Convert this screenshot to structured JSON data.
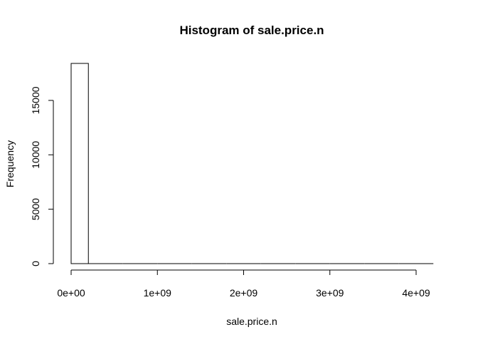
{
  "chart_data": {
    "type": "bar",
    "title": "Histogram of sale.price.n",
    "xlabel": "sale.price.n",
    "ylabel": "Frequency",
    "bin_width": 200000000,
    "bins": [
      {
        "start": 0,
        "end": 200000000,
        "count": 18400
      },
      {
        "start": 200000000,
        "end": 400000000,
        "count": 0
      },
      {
        "start": 400000000,
        "end": 600000000,
        "count": 0
      },
      {
        "start": 600000000,
        "end": 800000000,
        "count": 0
      },
      {
        "start": 800000000,
        "end": 1000000000,
        "count": 0
      },
      {
        "start": 1000000000,
        "end": 1200000000,
        "count": 0
      },
      {
        "start": 1200000000,
        "end": 1400000000,
        "count": 0
      },
      {
        "start": 1400000000,
        "end": 1600000000,
        "count": 0
      },
      {
        "start": 1600000000,
        "end": 1800000000,
        "count": 0
      },
      {
        "start": 1800000000,
        "end": 2000000000,
        "count": 0
      },
      {
        "start": 2000000000,
        "end": 2200000000,
        "count": 0
      },
      {
        "start": 2200000000,
        "end": 2400000000,
        "count": 0
      },
      {
        "start": 2400000000,
        "end": 2600000000,
        "count": 0
      },
      {
        "start": 2600000000,
        "end": 2800000000,
        "count": 0
      },
      {
        "start": 2800000000,
        "end": 3000000000,
        "count": 0
      },
      {
        "start": 3000000000,
        "end": 3200000000,
        "count": 0
      },
      {
        "start": 3200000000,
        "end": 3400000000,
        "count": 0
      },
      {
        "start": 3400000000,
        "end": 3600000000,
        "count": 0
      },
      {
        "start": 3600000000,
        "end": 3800000000,
        "count": 0
      },
      {
        "start": 3800000000,
        "end": 4000000000,
        "count": 0
      },
      {
        "start": 4000000000,
        "end": 4200000000,
        "count": 0
      }
    ],
    "xlim": [
      0,
      4200000000
    ],
    "ylim": [
      0,
      18400
    ],
    "x_ticks": [
      {
        "value": 0,
        "label": "0e+00"
      },
      {
        "value": 1000000000,
        "label": "1e+09"
      },
      {
        "value": 2000000000,
        "label": "2e+09"
      },
      {
        "value": 3000000000,
        "label": "3e+09"
      },
      {
        "value": 4000000000,
        "label": "4e+09"
      }
    ],
    "y_ticks": [
      {
        "value": 0,
        "label": "0"
      },
      {
        "value": 5000,
        "label": "5000"
      },
      {
        "value": 10000,
        "label": "10000"
      },
      {
        "value": 15000,
        "label": "15000"
      }
    ],
    "grid": false,
    "legend": "none"
  }
}
